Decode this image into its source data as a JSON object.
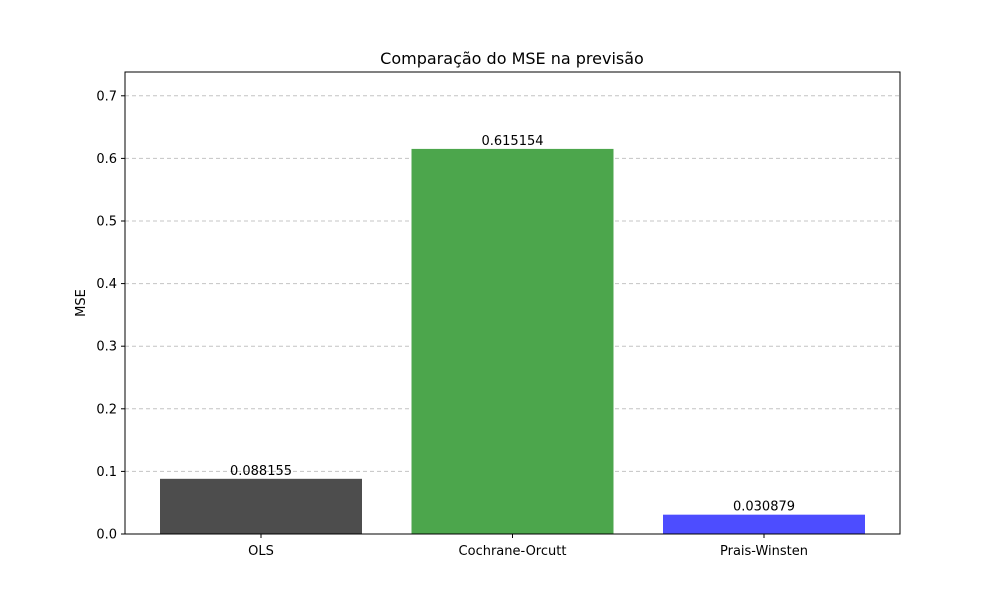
{
  "chart_data": {
    "type": "bar",
    "title": "Comparação do MSE na previsão",
    "xlabel": "",
    "ylabel": "MSE",
    "categories": [
      "OLS",
      "Cochrane-Orcutt",
      "Prais-Winsten"
    ],
    "values": [
      0.088155,
      0.615154,
      0.030879
    ],
    "value_labels": [
      "0.088155",
      "0.615154",
      "0.030879"
    ],
    "colors": [
      "#4d4d4d",
      "#4ca64c",
      "#4d4dff"
    ],
    "ylim": [
      0,
      0.738
    ],
    "yticks": [
      0.0,
      0.1,
      0.2,
      0.3,
      0.4,
      0.5,
      0.6,
      0.7
    ],
    "ytick_labels": [
      "0.0",
      "0.1",
      "0.2",
      "0.3",
      "0.4",
      "0.5",
      "0.6",
      "0.7"
    ],
    "grid": "y-dashed",
    "grid_color": "#c4c4c4"
  }
}
